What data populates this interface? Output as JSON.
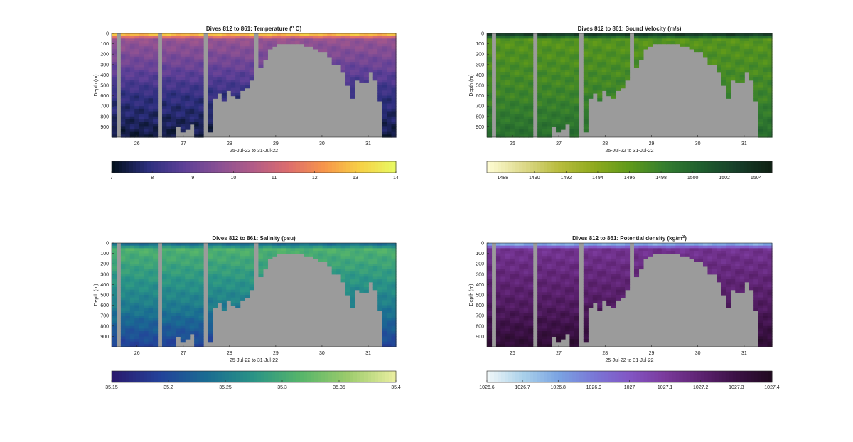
{
  "figure": {
    "xlabel": "25-Jul-22 to 31-Jul-22",
    "ylabel": "Depth (m)",
    "x_ticks": [
      "26",
      "27",
      "28",
      "29",
      "30",
      "31"
    ],
    "y_ticks": [
      "0",
      "100",
      "200",
      "300",
      "400",
      "500",
      "600",
      "700",
      "800",
      "900"
    ],
    "background_gray": "#9b9b9b"
  },
  "chart_data": [
    {
      "type": "heatmap",
      "title": "Dives 812 to 861: Temperature (",
      "title_sup": "o",
      "title_tail": " C)",
      "xlabel": "25-Jul-22 to 31-Jul-22",
      "ylabel": "Depth (m)",
      "x_range": [
        25.45,
        31.6
      ],
      "y_range": [
        0,
        1000
      ],
      "y_reversed": true,
      "colorbar": {
        "min": 7,
        "max": 14,
        "ticks": [
          "7",
          "8",
          "9",
          "10",
          "11",
          "12",
          "13",
          "14"
        ],
        "colors": [
          "#04111f",
          "#2c2f7e",
          "#5d3f97",
          "#895094",
          "#b35c87",
          "#dd6d6d",
          "#f7954a",
          "#f7cf45",
          "#e9f861"
        ]
      },
      "profile": {
        "surface": 13.6,
        "mid": 9.9,
        "deep": 8.0,
        "bottom": 7.3
      }
    },
    {
      "type": "heatmap",
      "title": "Dives 812 to 861: Sound Velocity (m/s)",
      "xlabel": "25-Jul-22 to 31-Jul-22",
      "ylabel": "Depth (m)",
      "x_range": [
        25.45,
        31.6
      ],
      "y_range": [
        0,
        1000
      ],
      "y_reversed": true,
      "colorbar": {
        "min": 1487,
        "max": 1505,
        "ticks": [
          "1488",
          "1490",
          "1492",
          "1494",
          "1496",
          "1498",
          "1500",
          "1502",
          "1504"
        ],
        "colors": [
          "#fdfbd1",
          "#ddd98a",
          "#b8bc3d",
          "#8faa1e",
          "#5f9a1a",
          "#347e2f",
          "#1f5f2e",
          "#17402a",
          "#0f2214"
        ]
      },
      "profile": {
        "surface": 1504.5,
        "mid": 1496.5,
        "deep": 1497.8,
        "bottom": 1499.5
      }
    },
    {
      "type": "heatmap",
      "title": "Dives 812 to 861: Salinity (psu)",
      "xlabel": "25-Jul-22 to 31-Jul-22",
      "ylabel": "Depth (m)",
      "x_range": [
        25.45,
        31.6
      ],
      "y_range": [
        0,
        1000
      ],
      "y_reversed": true,
      "colorbar": {
        "min": 35.15,
        "max": 35.4,
        "ticks": [
          "35.15",
          "35.2",
          "35.25",
          "35.3",
          "35.35",
          "35.4"
        ],
        "colors": [
          "#2a1a6e",
          "#23429a",
          "#1a6c92",
          "#2a9486",
          "#56b56a",
          "#9bcb6b",
          "#e8ed9f"
        ]
      },
      "profile": {
        "surface": 35.22,
        "mid": 35.31,
        "deep": 35.25,
        "bottom": 35.19
      }
    },
    {
      "type": "heatmap",
      "title": "Dives 812 to 861: Potential density (kg/m",
      "title_sup": "3",
      "title_tail": ")",
      "xlabel": "25-Jul-22 to 31-Jul-22",
      "ylabel": "Depth (m)",
      "x_range": [
        25.45,
        31.6
      ],
      "y_range": [
        0,
        1000
      ],
      "y_reversed": true,
      "colorbar": {
        "min": 1026.6,
        "max": 1027.4,
        "ticks": [
          "1026.6",
          "1026.7",
          "1026.8",
          "1026.9",
          "1027",
          "1027.1",
          "1027.2",
          "1027.3",
          "1027.4"
        ],
        "colors": [
          "#eef6f8",
          "#a9d0ea",
          "#7aa3e2",
          "#7a77d6",
          "#8256c4",
          "#7b3a9c",
          "#5e2372",
          "#3c1146",
          "#220a22"
        ]
      },
      "profile": {
        "surface": 1026.7,
        "mid": 1027.13,
        "deep": 1027.24,
        "bottom": 1027.35
      }
    }
  ]
}
